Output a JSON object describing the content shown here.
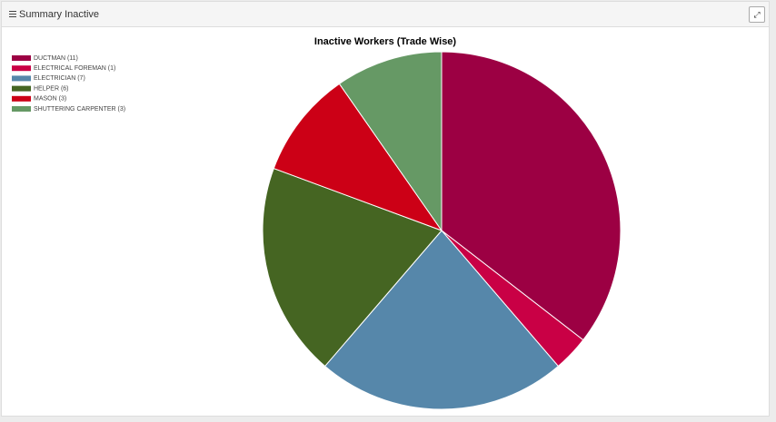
{
  "header": {
    "title": "Summary Inactive"
  },
  "chart_data": {
    "type": "pie",
    "title": "Inactive Workers (Trade Wise)",
    "categories": [
      "DUCTMAN (11)",
      "ELECTRICAL FOREMAN (1)",
      "ELECTRICIAN (7)",
      "HELPER (6)",
      "MASON (3)",
      "SHUTTERING CARPENTER  (3)"
    ],
    "values": [
      11,
      1,
      7,
      6,
      3,
      3
    ],
    "colors": [
      "#9c0043",
      "#c90045",
      "#5687aa",
      "#456522",
      "#cc0016",
      "#669965"
    ]
  }
}
